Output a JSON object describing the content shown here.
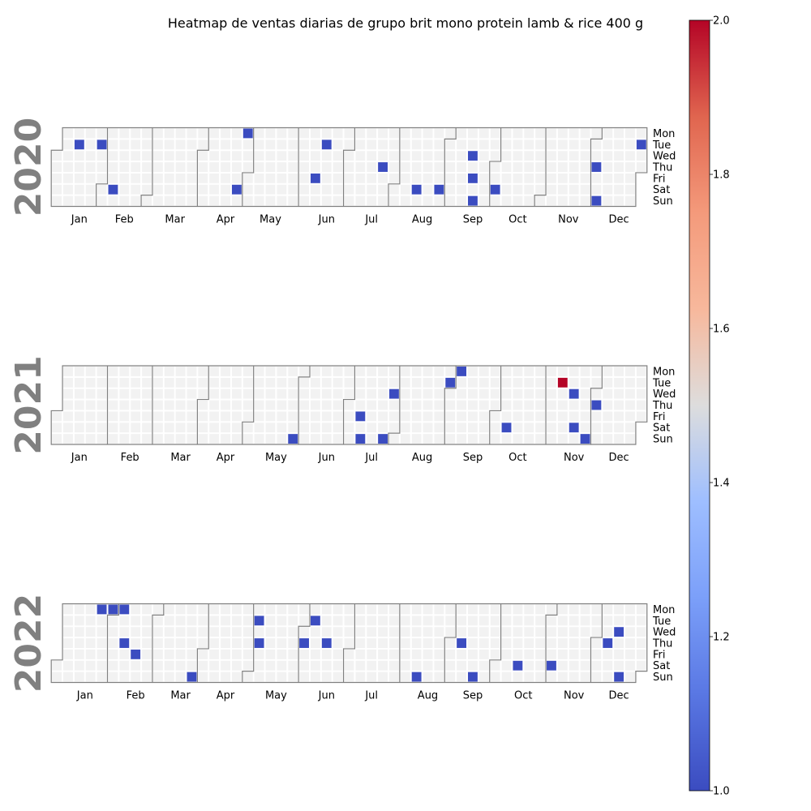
{
  "chart_data": {
    "type": "heatmap",
    "title": "Heatmap de ventas diarias de grupo brit mono protein lamb & rice 400 g",
    "years": [
      2020,
      2021,
      2022
    ],
    "month_labels": [
      "Jan",
      "Feb",
      "Mar",
      "Apr",
      "May",
      "Jun",
      "Jul",
      "Aug",
      "Sep",
      "Oct",
      "Nov",
      "Dec"
    ],
    "weekday_labels": [
      "Mon",
      "Tue",
      "Wed",
      "Thu",
      "Fri",
      "Sat",
      "Sun"
    ],
    "colorbar": {
      "min": 1.0,
      "max": 2.0,
      "ticks": [
        "1.0",
        "1.2",
        "1.4",
        "1.6",
        "1.8",
        "2.0"
      ],
      "colormap": "coolwarm"
    },
    "empty_cell_color": "#f2f2f2",
    "border_color": "#808080",
    "year_label_color": "#808080",
    "sales": {
      "2020": [
        {
          "date": "2020-01-14",
          "value": 1
        },
        {
          "date": "2020-01-28",
          "value": 1
        },
        {
          "date": "2020-02-08",
          "value": 1
        },
        {
          "date": "2020-04-25",
          "value": 1
        },
        {
          "date": "2020-04-27",
          "value": 1
        },
        {
          "date": "2020-06-12",
          "value": 1
        },
        {
          "date": "2020-06-16",
          "value": 1
        },
        {
          "date": "2020-07-23",
          "value": 1
        },
        {
          "date": "2020-08-15",
          "value": 1
        },
        {
          "date": "2020-08-29",
          "value": 1
        },
        {
          "date": "2020-09-16",
          "value": 1
        },
        {
          "date": "2020-09-18",
          "value": 1
        },
        {
          "date": "2020-09-20",
          "value": 1
        },
        {
          "date": "2020-10-03",
          "value": 1
        },
        {
          "date": "2020-12-03",
          "value": 1
        },
        {
          "date": "2020-12-06",
          "value": 1
        },
        {
          "date": "2020-12-29",
          "value": 1
        }
      ],
      "2021": [
        {
          "date": "2021-05-30",
          "value": 1
        },
        {
          "date": "2021-07-09",
          "value": 1
        },
        {
          "date": "2021-07-11",
          "value": 1
        },
        {
          "date": "2021-07-25",
          "value": 1
        },
        {
          "date": "2021-07-28",
          "value": 1
        },
        {
          "date": "2021-08-31",
          "value": 1
        },
        {
          "date": "2021-09-06",
          "value": 1
        },
        {
          "date": "2021-10-09",
          "value": 1
        },
        {
          "date": "2021-11-09",
          "value": 2
        },
        {
          "date": "2021-11-17",
          "value": 1
        },
        {
          "date": "2021-11-20",
          "value": 1
        },
        {
          "date": "2021-11-28",
          "value": 1
        },
        {
          "date": "2021-12-02",
          "value": 1
        }
      ],
      "2022": [
        {
          "date": "2022-01-24",
          "value": 1
        },
        {
          "date": "2022-01-31",
          "value": 1
        },
        {
          "date": "2022-02-07",
          "value": 1
        },
        {
          "date": "2022-02-10",
          "value": 1
        },
        {
          "date": "2022-02-18",
          "value": 1
        },
        {
          "date": "2022-03-27",
          "value": 1
        },
        {
          "date": "2022-05-03",
          "value": 1
        },
        {
          "date": "2022-05-05",
          "value": 1
        },
        {
          "date": "2022-06-02",
          "value": 1
        },
        {
          "date": "2022-06-07",
          "value": 1
        },
        {
          "date": "2022-06-16",
          "value": 1
        },
        {
          "date": "2022-08-14",
          "value": 1
        },
        {
          "date": "2022-09-08",
          "value": 1
        },
        {
          "date": "2022-09-18",
          "value": 1
        },
        {
          "date": "2022-10-15",
          "value": 1
        },
        {
          "date": "2022-11-05",
          "value": 1
        },
        {
          "date": "2022-12-08",
          "value": 1
        },
        {
          "date": "2022-12-14",
          "value": 1
        },
        {
          "date": "2022-12-18",
          "value": 1
        }
      ]
    }
  }
}
